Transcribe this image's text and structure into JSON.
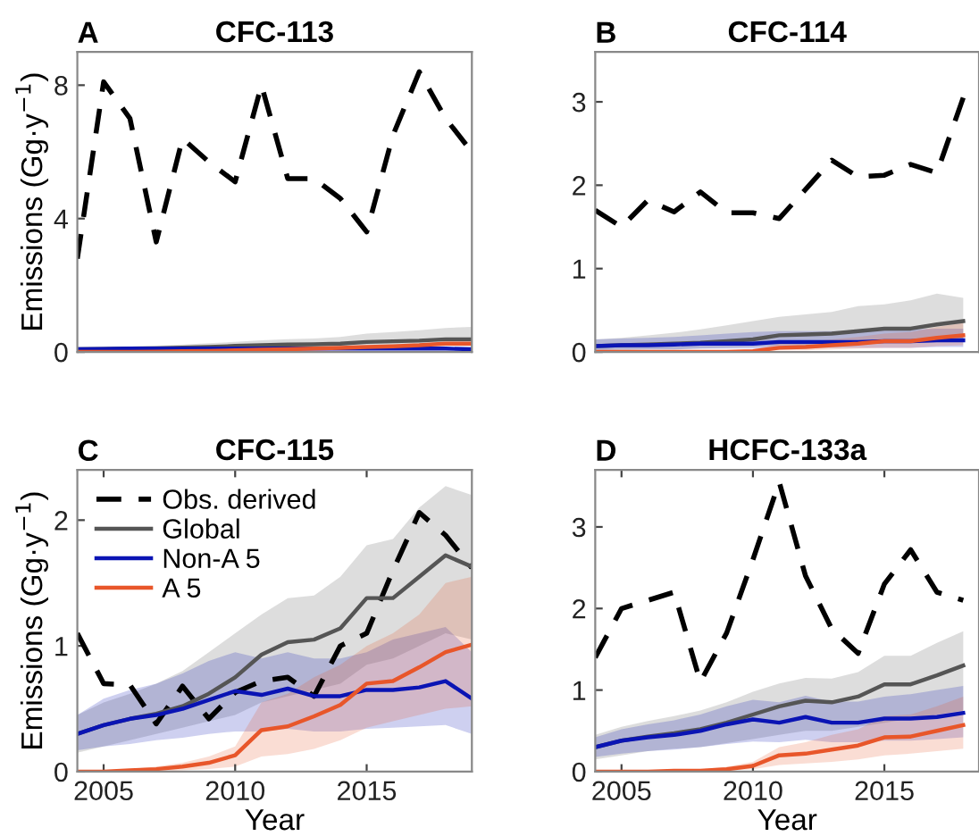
{
  "chart_data": [
    {
      "type": "line",
      "title": "CFC-113",
      "annotations": [
        "A"
      ],
      "ylabel": "Emissions (Gg·y$^{−1}$)",
      "x": [
        2004,
        2005,
        2006,
        2007,
        2008,
        2009,
        2010,
        2011,
        2012,
        2013,
        2014,
        2015,
        2016,
        2017,
        2018,
        2019
      ],
      "xlim": [
        2004,
        2019
      ],
      "ylim": [
        0,
        9
      ],
      "yticks": [
        0,
        4,
        8
      ],
      "tick_labels": "y",
      "grid": false,
      "legend": false,
      "series": [
        {
          "color": "#000000",
          "line_style": "dashed",
          "values": [
            2.8,
            8.1,
            7.0,
            3.3,
            6.4,
            5.7,
            5.1,
            8.0,
            5.2,
            5.2,
            4.6,
            3.6,
            6.5,
            8.4,
            7.0,
            6.0
          ]
        },
        {
          "color": "#555555",
          "line_style": "solid",
          "values": [
            0.08,
            0.09,
            0.1,
            0.11,
            0.13,
            0.15,
            0.18,
            0.2,
            0.22,
            0.23,
            0.25,
            0.3,
            0.32,
            0.34,
            0.38,
            0.38
          ],
          "lower": [
            0.05,
            0.05,
            0.06,
            0.06,
            0.07,
            0.08,
            0.09,
            0.1,
            0.11,
            0.11,
            0.12,
            0.14,
            0.15,
            0.16,
            0.18,
            0.18
          ],
          "upper": [
            0.12,
            0.14,
            0.16,
            0.19,
            0.22,
            0.26,
            0.3,
            0.35,
            0.38,
            0.4,
            0.45,
            0.55,
            0.6,
            0.65,
            0.72,
            0.75
          ]
        },
        {
          "color": "#0a14b4",
          "line_style": "solid",
          "values": [
            0.08,
            0.09,
            0.1,
            0.1,
            0.1,
            0.1,
            0.1,
            0.1,
            0.1,
            0.1,
            0.1,
            0.1,
            0.1,
            0.1,
            0.1,
            0.08
          ]
        },
        {
          "color": "#e8562a",
          "line_style": "solid",
          "values": [
            0,
            0,
            0,
            0.01,
            0.02,
            0.03,
            0.05,
            0.07,
            0.08,
            0.1,
            0.12,
            0.15,
            0.17,
            0.2,
            0.25,
            0.25
          ]
        }
      ]
    },
    {
      "type": "line",
      "title": "CFC-114",
      "annotations": [
        "B"
      ],
      "x": [
        2004,
        2005,
        2006,
        2007,
        2008,
        2009,
        2010,
        2011,
        2012,
        2013,
        2014,
        2015,
        2016,
        2017,
        2018
      ],
      "xlim": [
        2004,
        2018.6
      ],
      "ylim": [
        0,
        3.6
      ],
      "yticks": [
        0,
        1,
        2,
        3
      ],
      "tick_labels": "y",
      "grid": false,
      "legend": false,
      "series": [
        {
          "color": "#000000",
          "line_style": "dashed",
          "values": [
            1.7,
            1.5,
            1.82,
            1.68,
            1.92,
            1.67,
            1.67,
            1.6,
            1.95,
            2.3,
            2.1,
            2.12,
            2.25,
            2.15,
            3.05
          ]
        },
        {
          "color": "#555555",
          "line_style": "solid",
          "values": [
            0.07,
            0.08,
            0.09,
            0.1,
            0.11,
            0.13,
            0.15,
            0.2,
            0.21,
            0.22,
            0.25,
            0.28,
            0.28,
            0.33,
            0.37
          ],
          "lower": [
            0.02,
            0.02,
            0.03,
            0.03,
            0.04,
            0.05,
            0.06,
            0.08,
            0.08,
            0.09,
            0.1,
            0.11,
            0.11,
            0.13,
            0.15
          ],
          "upper": [
            0.15,
            0.17,
            0.2,
            0.23,
            0.27,
            0.32,
            0.37,
            0.42,
            0.45,
            0.48,
            0.55,
            0.57,
            0.62,
            0.7,
            0.65
          ]
        },
        {
          "color": "#0a14b4",
          "line_style": "solid",
          "values": [
            0.07,
            0.08,
            0.08,
            0.09,
            0.1,
            0.1,
            0.1,
            0.12,
            0.12,
            0.12,
            0.12,
            0.13,
            0.13,
            0.14,
            0.14
          ],
          "lower": [
            0.02,
            0.03,
            0.03,
            0.03,
            0.04,
            0.04,
            0.04,
            0.05,
            0.05,
            0.05,
            0.05,
            0.05,
            0.05,
            0.06,
            0.06
          ],
          "upper": [
            0.15,
            0.16,
            0.17,
            0.18,
            0.2,
            0.22,
            0.24,
            0.25,
            0.25,
            0.25,
            0.25,
            0.27,
            0.27,
            0.28,
            0.28
          ]
        },
        {
          "color": "#e8562a",
          "line_style": "solid",
          "values": [
            0,
            0,
            0,
            0,
            0,
            0,
            0.01,
            0.05,
            0.06,
            0.08,
            0.1,
            0.13,
            0.13,
            0.17,
            0.2
          ],
          "lower": [
            0,
            0,
            0,
            0,
            0,
            0,
            0,
            0.02,
            0.02,
            0.03,
            0.04,
            0.05,
            0.05,
            0.07,
            0.08
          ],
          "upper": [
            0,
            0,
            0,
            0.01,
            0.01,
            0.02,
            0.03,
            0.1,
            0.12,
            0.15,
            0.18,
            0.22,
            0.24,
            0.3,
            0.35
          ]
        }
      ]
    },
    {
      "type": "line",
      "title": "CFC-115",
      "annotations": [
        "C"
      ],
      "ylabel": "Emissions (Gg·y$^{−1}$)",
      "xlabel": "Year",
      "x": [
        2004,
        2005,
        2006,
        2007,
        2008,
        2009,
        2010,
        2011,
        2012,
        2013,
        2014,
        2015,
        2016,
        2017,
        2018,
        2019
      ],
      "xlim": [
        2004,
        2019
      ],
      "xticks": [
        2005,
        2010,
        2015
      ],
      "ylim": [
        0,
        2.4
      ],
      "yticks": [
        0,
        1,
        2
      ],
      "grid": false,
      "legend": "top left",
      "series": [
        {
          "name": "Obs. derived",
          "color": "#000000",
          "line_style": "dashed",
          "values": [
            1.1,
            0.7,
            0.69,
            0.38,
            0.68,
            0.42,
            0.63,
            0.72,
            0.75,
            0.6,
            1.0,
            1.1,
            1.6,
            2.06,
            1.88,
            1.62
          ]
        },
        {
          "name": "Global",
          "color": "#555555",
          "line_style": "solid",
          "values": [
            0.3,
            0.37,
            0.42,
            0.46,
            0.52,
            0.62,
            0.75,
            0.93,
            1.03,
            1.05,
            1.14,
            1.38,
            1.38,
            1.55,
            1.72,
            1.63
          ],
          "lower": [
            0.15,
            0.2,
            0.25,
            0.3,
            0.35,
            0.4,
            0.45,
            0.55,
            0.6,
            0.65,
            0.7,
            0.85,
            0.9,
            1.0,
            1.1,
            1.05
          ],
          "upper": [
            0.45,
            0.55,
            0.62,
            0.7,
            0.8,
            0.95,
            1.1,
            1.25,
            1.38,
            1.4,
            1.55,
            1.8,
            1.85,
            2.1,
            2.27,
            2.2
          ]
        },
        {
          "name": "Non-A 5",
          "color": "#0a14b4",
          "line_style": "solid",
          "values": [
            0.3,
            0.37,
            0.42,
            0.45,
            0.5,
            0.57,
            0.64,
            0.61,
            0.66,
            0.6,
            0.6,
            0.65,
            0.65,
            0.67,
            0.72,
            0.58
          ],
          "lower": [
            0.17,
            0.2,
            0.22,
            0.25,
            0.27,
            0.3,
            0.32,
            0.32,
            0.34,
            0.32,
            0.32,
            0.34,
            0.35,
            0.36,
            0.37,
            0.3
          ],
          "upper": [
            0.45,
            0.58,
            0.65,
            0.7,
            0.78,
            0.88,
            0.95,
            0.9,
            0.95,
            0.9,
            0.9,
            0.95,
            1.05,
            1.1,
            1.15,
            0.95
          ]
        },
        {
          "name": "A 5",
          "color": "#e8562a",
          "line_style": "solid",
          "values": [
            0,
            0,
            0.01,
            0.02,
            0.04,
            0.07,
            0.13,
            0.33,
            0.36,
            0.44,
            0.53,
            0.7,
            0.72,
            0.83,
            0.95,
            1.01
          ],
          "lower": [
            0,
            0,
            0,
            0,
            0.01,
            0.02,
            0.04,
            0.12,
            0.14,
            0.18,
            0.25,
            0.35,
            0.4,
            0.45,
            0.5,
            0.52
          ],
          "upper": [
            0,
            0.01,
            0.02,
            0.04,
            0.07,
            0.12,
            0.2,
            0.55,
            0.62,
            0.75,
            0.85,
            1.0,
            1.1,
            1.25,
            1.5,
            1.55
          ]
        }
      ]
    },
    {
      "type": "line",
      "title": "HCFC-133a",
      "annotations": [
        "D"
      ],
      "xlabel": "Year",
      "x": [
        2004,
        2005,
        2006,
        2007,
        2008,
        2009,
        2010,
        2011,
        2012,
        2013,
        2014,
        2015,
        2016,
        2017,
        2018
      ],
      "xlim": [
        2004,
        2018.6
      ],
      "xticks": [
        2005,
        2010,
        2015
      ],
      "ylim": [
        0,
        3.7
      ],
      "yticks": [
        0,
        1,
        2,
        3
      ],
      "grid": false,
      "legend": false,
      "series": [
        {
          "color": "#000000",
          "line_style": "dashed",
          "values": [
            1.4,
            2.0,
            2.1,
            2.2,
            1.1,
            1.7,
            2.6,
            3.55,
            2.4,
            1.75,
            1.45,
            2.3,
            2.72,
            2.2,
            2.1
          ]
        },
        {
          "color": "#555555",
          "line_style": "solid",
          "values": [
            0.3,
            0.38,
            0.43,
            0.47,
            0.52,
            0.6,
            0.7,
            0.8,
            0.87,
            0.85,
            0.92,
            1.07,
            1.07,
            1.18,
            1.3
          ],
          "lower": [
            0.15,
            0.2,
            0.25,
            0.28,
            0.3,
            0.35,
            0.4,
            0.45,
            0.5,
            0.5,
            0.55,
            0.6,
            0.65,
            0.7,
            0.75
          ],
          "upper": [
            0.45,
            0.55,
            0.62,
            0.68,
            0.75,
            0.85,
            0.98,
            1.08,
            1.15,
            1.14,
            1.22,
            1.42,
            1.42,
            1.58,
            1.72
          ]
        },
        {
          "color": "#0a14b4",
          "line_style": "solid",
          "values": [
            0.3,
            0.38,
            0.42,
            0.45,
            0.5,
            0.58,
            0.64,
            0.6,
            0.67,
            0.6,
            0.6,
            0.65,
            0.65,
            0.67,
            0.72
          ],
          "lower": [
            0.18,
            0.22,
            0.25,
            0.27,
            0.3,
            0.34,
            0.37,
            0.36,
            0.39,
            0.36,
            0.36,
            0.38,
            0.38,
            0.4,
            0.42
          ],
          "upper": [
            0.42,
            0.52,
            0.58,
            0.63,
            0.7,
            0.8,
            0.88,
            0.85,
            0.93,
            0.86,
            0.86,
            0.92,
            0.95,
            1.0,
            1.05
          ]
        },
        {
          "color": "#e8562a",
          "line_style": "solid",
          "values": [
            0,
            0,
            0,
            0.01,
            0.01,
            0.03,
            0.07,
            0.2,
            0.22,
            0.27,
            0.32,
            0.42,
            0.43,
            0.5,
            0.57
          ],
          "lower": [
            0,
            0,
            0,
            0,
            0,
            0.01,
            0.03,
            0.08,
            0.1,
            0.12,
            0.15,
            0.2,
            0.22,
            0.25,
            0.28
          ],
          "upper": [
            0,
            0,
            0.01,
            0.02,
            0.03,
            0.06,
            0.12,
            0.3,
            0.36,
            0.45,
            0.52,
            0.68,
            0.7,
            0.8,
            0.92
          ]
        }
      ]
    }
  ]
}
